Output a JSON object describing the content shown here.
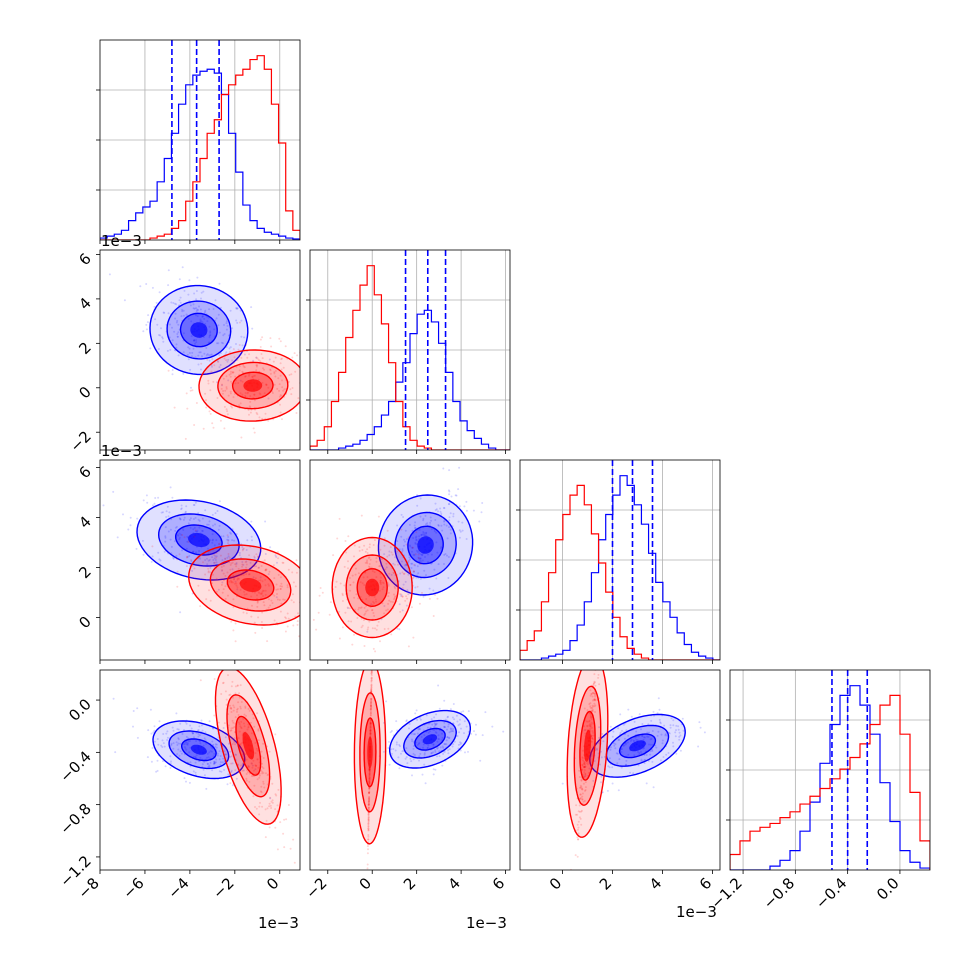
{
  "chart_data": {
    "type": "corner",
    "parameters": 4,
    "grid": true,
    "colors": {
      "series_a": "#0000ff",
      "series_b": "#ff0000"
    },
    "series": [
      {
        "color": "#0000ff"
      },
      {
        "color": "#ff0000"
      }
    ],
    "offset_label": "1e−3",
    "axes": [
      {
        "range": [
          -8.0,
          0.9
        ],
        "ticks": [
          -8,
          -6,
          -4,
          -2,
          0
        ],
        "tick_labels": [
          "−8",
          "−6",
          "−4",
          "−2",
          "0"
        ],
        "scaled": true
      },
      {
        "range": [
          -2.8,
          6.2
        ],
        "ticks": [
          -2,
          0,
          2,
          4,
          6
        ],
        "tick_labels": [
          "−2",
          "0",
          "2",
          "4",
          "6"
        ],
        "scaled": true
      },
      {
        "range": [
          -1.7,
          6.3
        ],
        "ticks": [
          0,
          2,
          4,
          6
        ],
        "tick_labels": [
          "0",
          "2",
          "4",
          "6"
        ],
        "scaled": true
      },
      {
        "range": [
          -1.3,
          0.23
        ],
        "ticks": [
          -1.2,
          -0.8,
          -0.4,
          0.0
        ],
        "tick_labels": [
          "−1.2",
          "−0.8",
          "−0.4",
          "0.0"
        ],
        "scaled": false
      }
    ],
    "quantiles_series_a": [
      [
        -4.8,
        -3.7,
        -2.7
      ],
      [
        1.5,
        2.5,
        3.3
      ],
      [
        2.0,
        2.8,
        3.6
      ],
      [
        -0.52,
        -0.4,
        -0.25
      ]
    ],
    "histograms": [
      {
        "series_a": [
          0.01,
          0.02,
          0.03,
          0.05,
          0.1,
          0.14,
          0.17,
          0.2,
          0.3,
          0.42,
          0.55,
          0.7,
          0.8,
          0.85,
          0.87,
          0.88,
          0.86,
          0.75,
          0.55,
          0.35,
          0.18,
          0.1,
          0.06,
          0.04,
          0.03,
          0.02,
          0.01,
          0.005
        ],
        "series_b": [
          0.0,
          0.0,
          0.0,
          0.0,
          0.0,
          0.0,
          0.0,
          0.01,
          0.02,
          0.03,
          0.06,
          0.1,
          0.2,
          0.3,
          0.42,
          0.55,
          0.62,
          0.75,
          0.8,
          0.85,
          0.88,
          0.93,
          0.95,
          0.88,
          0.7,
          0.5,
          0.15,
          0.05
        ],
        "bin_range": [
          -8.0,
          0.9
        ]
      },
      {
        "series_a": [
          0.0,
          0.0,
          0.0,
          0.0,
          0.01,
          0.02,
          0.03,
          0.05,
          0.08,
          0.12,
          0.18,
          0.25,
          0.35,
          0.45,
          0.6,
          0.7,
          0.72,
          0.66,
          0.55,
          0.4,
          0.25,
          0.15,
          0.1,
          0.06,
          0.03,
          0.01,
          0.0,
          0.0
        ],
        "series_b": [
          0.02,
          0.05,
          0.12,
          0.25,
          0.4,
          0.58,
          0.72,
          0.85,
          0.95,
          0.8,
          0.65,
          0.45,
          0.25,
          0.12,
          0.05,
          0.02,
          0.01,
          0.0,
          0.0,
          0.0,
          0.0,
          0.0,
          0.0,
          0.0,
          0.0,
          0.0,
          0.0,
          0.0
        ],
        "bin_range": [
          -2.8,
          6.2
        ]
      },
      {
        "series_a": [
          0.0,
          0.0,
          0.0,
          0.01,
          0.02,
          0.03,
          0.05,
          0.1,
          0.18,
          0.3,
          0.45,
          0.62,
          0.75,
          0.85,
          0.95,
          0.9,
          0.8,
          0.7,
          0.55,
          0.4,
          0.3,
          0.22,
          0.14,
          0.08,
          0.04,
          0.02,
          0.01,
          0.0
        ],
        "series_b": [
          0.05,
          0.1,
          0.15,
          0.3,
          0.45,
          0.62,
          0.75,
          0.85,
          0.9,
          0.8,
          0.65,
          0.5,
          0.35,
          0.22,
          0.12,
          0.06,
          0.03,
          0.01,
          0.0,
          0.0,
          0.0,
          0.0,
          0.0,
          0.0,
          0.0,
          0.0,
          0.0,
          0.0
        ],
        "bin_range": [
          -1.7,
          6.3
        ]
      },
      {
        "series_a": [
          0.0,
          0.0,
          0.0,
          0.0,
          0.02,
          0.05,
          0.1,
          0.2,
          0.35,
          0.55,
          0.75,
          0.9,
          0.95,
          0.85,
          0.7,
          0.45,
          0.25,
          0.1,
          0.04,
          0.01
        ],
        "series_b": [
          0.08,
          0.15,
          0.2,
          0.22,
          0.24,
          0.27,
          0.3,
          0.34,
          0.38,
          0.42,
          0.47,
          0.52,
          0.58,
          0.65,
          0.75,
          0.85,
          0.9,
          0.7,
          0.4,
          0.15
        ],
        "bin_range": [
          -1.3,
          0.23
        ]
      }
    ],
    "joint": [
      {
        "row": 1,
        "col": 0,
        "series_a": {
          "mean": [
            -3.6,
            2.6
          ],
          "sd": [
            1.1,
            1.0
          ],
          "rot_deg": -20
        },
        "series_b": {
          "mean": [
            -1.2,
            0.1
          ],
          "sd": [
            1.2,
            0.8
          ],
          "rot_deg": 5
        }
      },
      {
        "row": 2,
        "col": 0,
        "series_a": {
          "mean": [
            -3.6,
            3.1
          ],
          "sd": [
            1.5,
            0.8
          ],
          "rot_deg": -28
        },
        "series_b": {
          "mean": [
            -1.3,
            1.3
          ],
          "sd": [
            1.5,
            0.8
          ],
          "rot_deg": -28
        }
      },
      {
        "row": 2,
        "col": 1,
        "series_a": {
          "mean": [
            2.4,
            2.9
          ],
          "sd": [
            1.1,
            1.0
          ],
          "rot_deg": 40
        },
        "series_b": {
          "mean": [
            0.0,
            1.2
          ],
          "sd": [
            0.9,
            1.0
          ],
          "rot_deg": 0
        }
      },
      {
        "row": 3,
        "col": 0,
        "series_a": {
          "mean": [
            -3.6,
            -0.38
          ],
          "sd": [
            1.1,
            0.11
          ],
          "rot_deg": -22
        },
        "series_b": {
          "mean": [
            -1.4,
            -0.35
          ],
          "sd": [
            1.2,
            0.3
          ],
          "rot_deg": -55
        }
      },
      {
        "row": 3,
        "col": 1,
        "series_a": {
          "mean": [
            2.6,
            -0.3
          ],
          "sd": [
            1.0,
            0.11
          ],
          "rot_deg": 25
        },
        "series_b": {
          "mean": [
            -0.1,
            -0.4
          ],
          "sd": [
            0.5,
            0.35
          ],
          "rot_deg": 85
        }
      },
      {
        "row": 3,
        "col": 2,
        "series_a": {
          "mean": [
            3.0,
            -0.35
          ],
          "sd": [
            1.1,
            0.12
          ],
          "rot_deg": 30
        },
        "series_b": {
          "mean": [
            1.0,
            -0.35
          ],
          "sd": [
            0.7,
            0.35
          ],
          "rot_deg": 70
        }
      }
    ]
  }
}
